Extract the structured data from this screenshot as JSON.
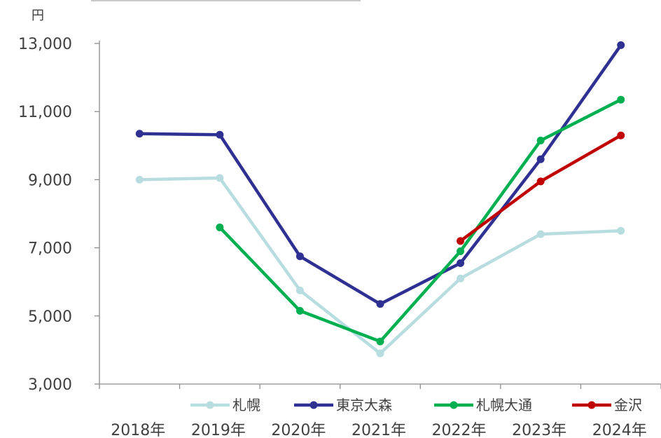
{
  "chart_data": {
    "type": "line",
    "title": "",
    "xlabel": "",
    "ylabel": "",
    "y_unit": "円",
    "categories": [
      "2018年",
      "2019年",
      "2020年",
      "2021年",
      "2022年",
      "2023年",
      "2024年"
    ],
    "ylim": [
      3000,
      13000
    ],
    "y_ticks": [
      3000,
      5000,
      7000,
      9000,
      11000,
      13000
    ],
    "y_tick_labels": [
      "3,000",
      "5,000",
      "7,000",
      "9,000",
      "11,000",
      "13,000"
    ],
    "grid": false,
    "legend_position": "bottom",
    "series": [
      {
        "name": "札幌",
        "color": "#b7dde1",
        "values": [
          9000,
          9050,
          5750,
          3900,
          6100,
          7400,
          7500
        ]
      },
      {
        "name": "東京大森",
        "color": "#2e3192",
        "values": [
          10350,
          10320,
          6750,
          5350,
          6550,
          9600,
          12950
        ]
      },
      {
        "name": "札幌大通",
        "color": "#00b050",
        "values": [
          null,
          7600,
          5150,
          4250,
          6900,
          10150,
          11350
        ]
      },
      {
        "name": "金沢",
        "color": "#c00000",
        "values": [
          null,
          null,
          null,
          null,
          7200,
          8950,
          10300
        ]
      }
    ]
  }
}
